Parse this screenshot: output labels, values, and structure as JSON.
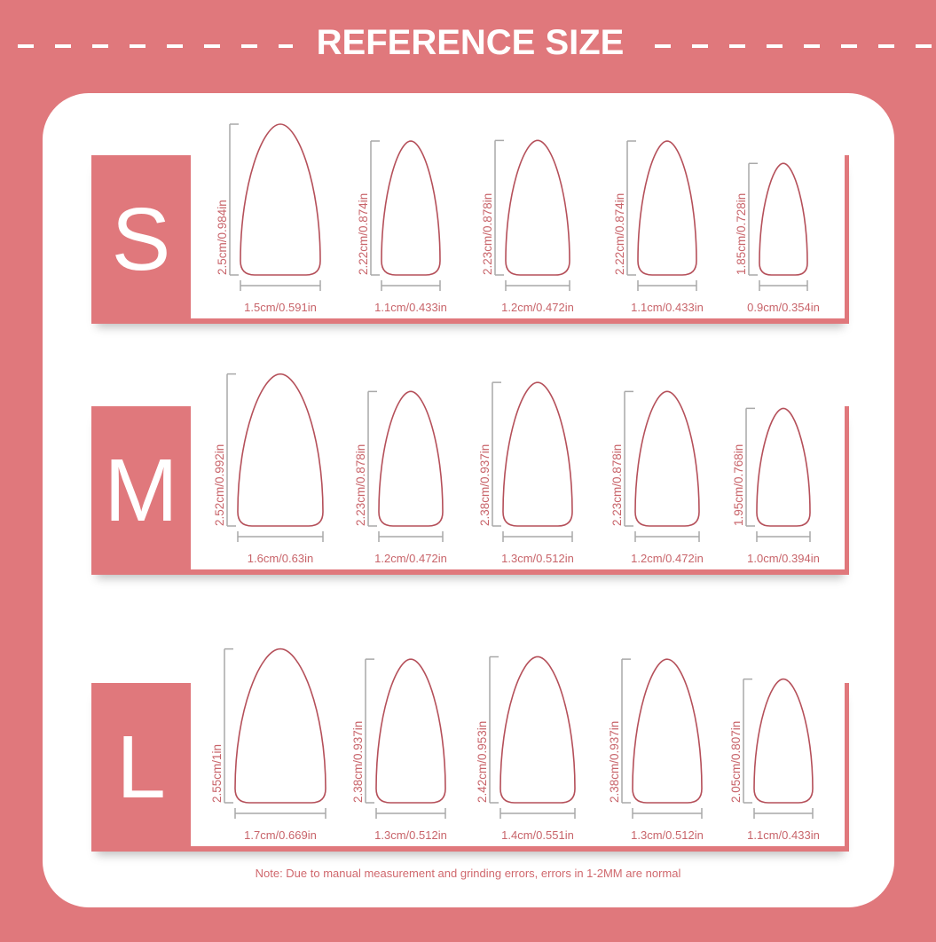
{
  "header": {
    "title": "REFERENCE SIZE"
  },
  "colors": {
    "accent": "#e0787c",
    "nail_outline": "#b5505a",
    "ruler": "#a9a9a9",
    "label": "#c8646a"
  },
  "rows": [
    {
      "size": "S",
      "nails": [
        {
          "length": "2.5cm/0.984in",
          "width": "1.5cm/0.591in"
        },
        {
          "length": "2.22cm/0.874in",
          "width": "1.1cm/0.433in"
        },
        {
          "length": "2.23cm/0.878in",
          "width": "1.2cm/0.472in"
        },
        {
          "length": "2.22cm/0.874in",
          "width": "1.1cm/0.433in"
        },
        {
          "length": "1.85cm/0.728in",
          "width": "0.9cm/0.354in"
        }
      ]
    },
    {
      "size": "M",
      "nails": [
        {
          "length": "2.52cm/0.992in",
          "width": "1.6cm/0.63in"
        },
        {
          "length": "2.23cm/0.878in",
          "width": "1.2cm/0.472in"
        },
        {
          "length": "2.38cm/0.937in",
          "width": "1.3cm/0.512in"
        },
        {
          "length": "2.23cm/0.878in",
          "width": "1.2cm/0.472in"
        },
        {
          "length": "1.95cm/0.768in",
          "width": "1.0cm/0.394in"
        }
      ]
    },
    {
      "size": "L",
      "nails": [
        {
          "length": "2.55cm/1in",
          "width": "1.7cm/0.669in"
        },
        {
          "length": "2.38cm/0.937in",
          "width": "1.3cm/0.512in"
        },
        {
          "length": "2.42cm/0.953in",
          "width": "1.4cm/0.551in"
        },
        {
          "length": "2.38cm/0.937in",
          "width": "1.3cm/0.512in"
        },
        {
          "length": "2.05cm/0.807in",
          "width": "1.1cm/0.433in"
        }
      ]
    }
  ],
  "note": "Note: Due to manual measurement and grinding errors, errors in 1-2MM are normal"
}
